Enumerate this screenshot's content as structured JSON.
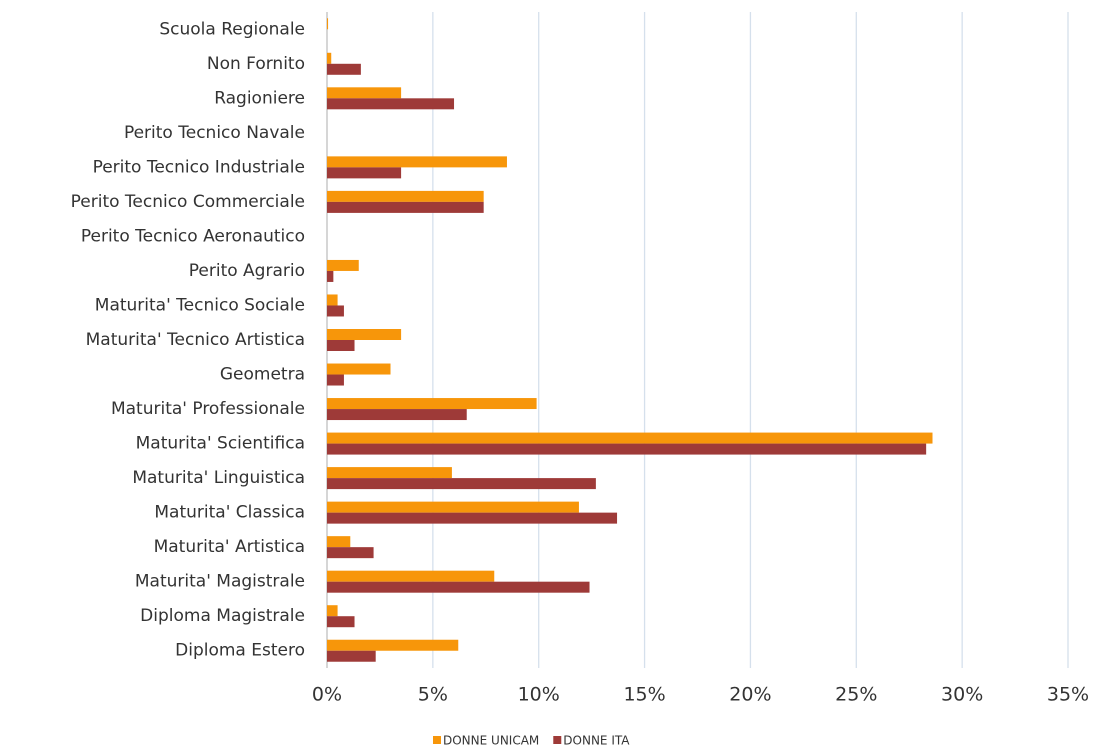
{
  "chart_data": {
    "type": "hbar",
    "categories": [
      "Scuola Regionale",
      "Non Fornito",
      "Ragioniere",
      "Perito Tecnico Navale",
      "Perito Tecnico Industriale",
      "Perito Tecnico Commerciale",
      "Perito Tecnico Aeronautico",
      "Perito Agrario",
      "Maturita' Tecnico Sociale",
      "Maturita' Tecnico Artistica",
      "Geometra",
      "Maturita' Professionale",
      "Maturita' Scientifica",
      "Maturita' Linguistica",
      "Maturita' Classica",
      "Maturita' Artistica",
      "Maturita' Magistrale",
      "Diploma Magistrale",
      "Diploma Estero"
    ],
    "series": [
      {
        "name": "DONNE UNICAM",
        "color": "#f7960a",
        "values": [
          0.05,
          0.2,
          3.5,
          0,
          8.5,
          7.4,
          0,
          1.5,
          0.5,
          3.5,
          3.0,
          9.9,
          28.6,
          5.9,
          11.9,
          1.1,
          7.9,
          0.5,
          6.2
        ]
      },
      {
        "name": "DONNE ITA",
        "color": "#9e3a38",
        "values": [
          0,
          1.6,
          6.0,
          0,
          3.5,
          7.4,
          0,
          0.3,
          0.8,
          1.3,
          0.8,
          6.6,
          28.3,
          12.7,
          13.7,
          2.2,
          12.4,
          1.3,
          2.3
        ]
      }
    ],
    "xlim": [
      0,
      35
    ],
    "xticks": [
      {
        "value": 0,
        "label": "0%"
      },
      {
        "value": 5,
        "label": "5%"
      },
      {
        "value": 10,
        "label": "10%"
      },
      {
        "value": 15,
        "label": "15%"
      },
      {
        "value": 20,
        "label": "20%"
      },
      {
        "value": 25,
        "label": "25%"
      },
      {
        "value": 30,
        "label": "30%"
      },
      {
        "value": 35,
        "label": "35%"
      }
    ],
    "grid": true
  }
}
